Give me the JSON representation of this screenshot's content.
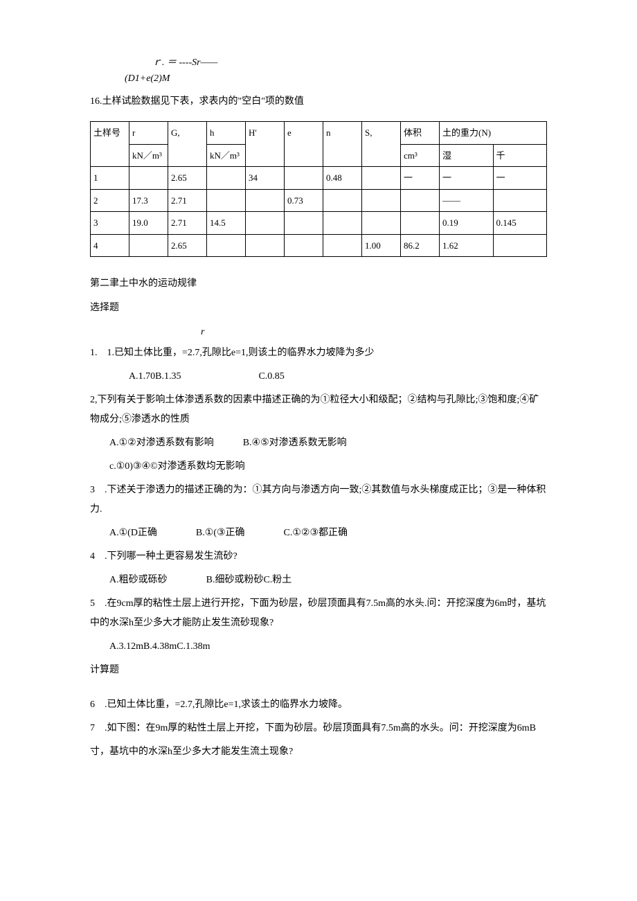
{
  "formula": {
    "line1": "ｒ. ＝ ----Sr——",
    "line2": "(D1+e(2)M"
  },
  "prompt16": "16.土样试脸数据见下表，求表内的\"空白\"项的数值",
  "table": {
    "headers": {
      "sample": "土样号",
      "r": "r",
      "g": "G,",
      "h": "h",
      "hp": "H'",
      "e": "e",
      "n": "n",
      "s": "S,",
      "vol": "体积",
      "weight": "土的重力(N)"
    },
    "units": {
      "r": "kN／m³",
      "h": "kN／m³",
      "vol": "cm³",
      "wet": "湿",
      "dry": "千"
    },
    "rows": [
      {
        "sample": "1",
        "r": "",
        "g": "2.65",
        "h": "",
        "hp": "34",
        "e": "",
        "n": "0.48",
        "s": "",
        "vol": "一",
        "wet": "一",
        "dry": "一"
      },
      {
        "sample": "2",
        "r": "17.3",
        "g": "2.71",
        "h": "",
        "hp": "",
        "e": "0.73",
        "n": "",
        "s": "",
        "vol": "",
        "wet": "——",
        "dry": ""
      },
      {
        "sample": "3",
        "r": "19.0",
        "g": "2.71",
        "h": "14.5",
        "hp": "",
        "e": "",
        "n": "",
        "s": "",
        "vol": "",
        "wet": "0.19",
        "dry": "0.145"
      },
      {
        "sample": "4",
        "r": "",
        "g": "2.65",
        "h": "",
        "hp": "",
        "e": "",
        "n": "",
        "s": "1.00",
        "vol": "86.2",
        "wet": "1.62",
        "dry": ""
      }
    ]
  },
  "chapter": "第二聿土中水的运动规律",
  "selectTitle": "选择题",
  "bigR": "r",
  "q1": {
    "text": "1.　1.已知土体比重，=2.7,孔隙比e=1,则该土的临界水力坡降为多少",
    "opts": "A.1.70B.1.35　　　　　　　　C.0.85"
  },
  "q2": {
    "l1": "2,下列有关于影响土体渗透系数的因素中描述正确的为①粒径大小和级配；②结构与孔隙比;③饱和度;④矿物成分;⑤渗透水的性质",
    "optA": "A.①②对渗透系数有影响　　　B.④⑤对渗透系数无影响",
    "optC": "c.①0)③④©对渗透系数均无影响"
  },
  "q3": {
    "l1": "3　.下述关于渗透力的描述正确的为：①其方向与渗透方向一致;②其数值与水头梯度成正比；③是一种体积力.",
    "opts": "A.①(D正确　　　　B.①(③正确　　　　C.①②③都正确"
  },
  "q4": {
    "text": "4　.下列哪一种土更容易发生流砂?",
    "opts": "A.粗砂或砾砂　　　　B.细砂或粉砂C.粉土"
  },
  "q5": {
    "l1": "5　.在9cm厚的粘性土层上进行开挖，下面为砂层，砂层顶面具有7.5m高的水头.问：开挖深度为6m时，基坑中的水深h至少多大才能防止发生流砂现象?",
    "opts": "A.3.12mB.4.38mC.1.38m"
  },
  "calcTitle": "计算题",
  "q6": "6　.已知土体比重，=2.7,孔隙比e=1,求该土的临界水力坡降。",
  "q7": {
    "l1": "7　.如下图：在9m厚的粘性土层上开挖，下面为砂层。砂层顶面具有7.5m高的水头。问：开挖深度为6mB",
    "l2": "寸，基坑中的水深h至少多大才能发生流土现象?"
  }
}
